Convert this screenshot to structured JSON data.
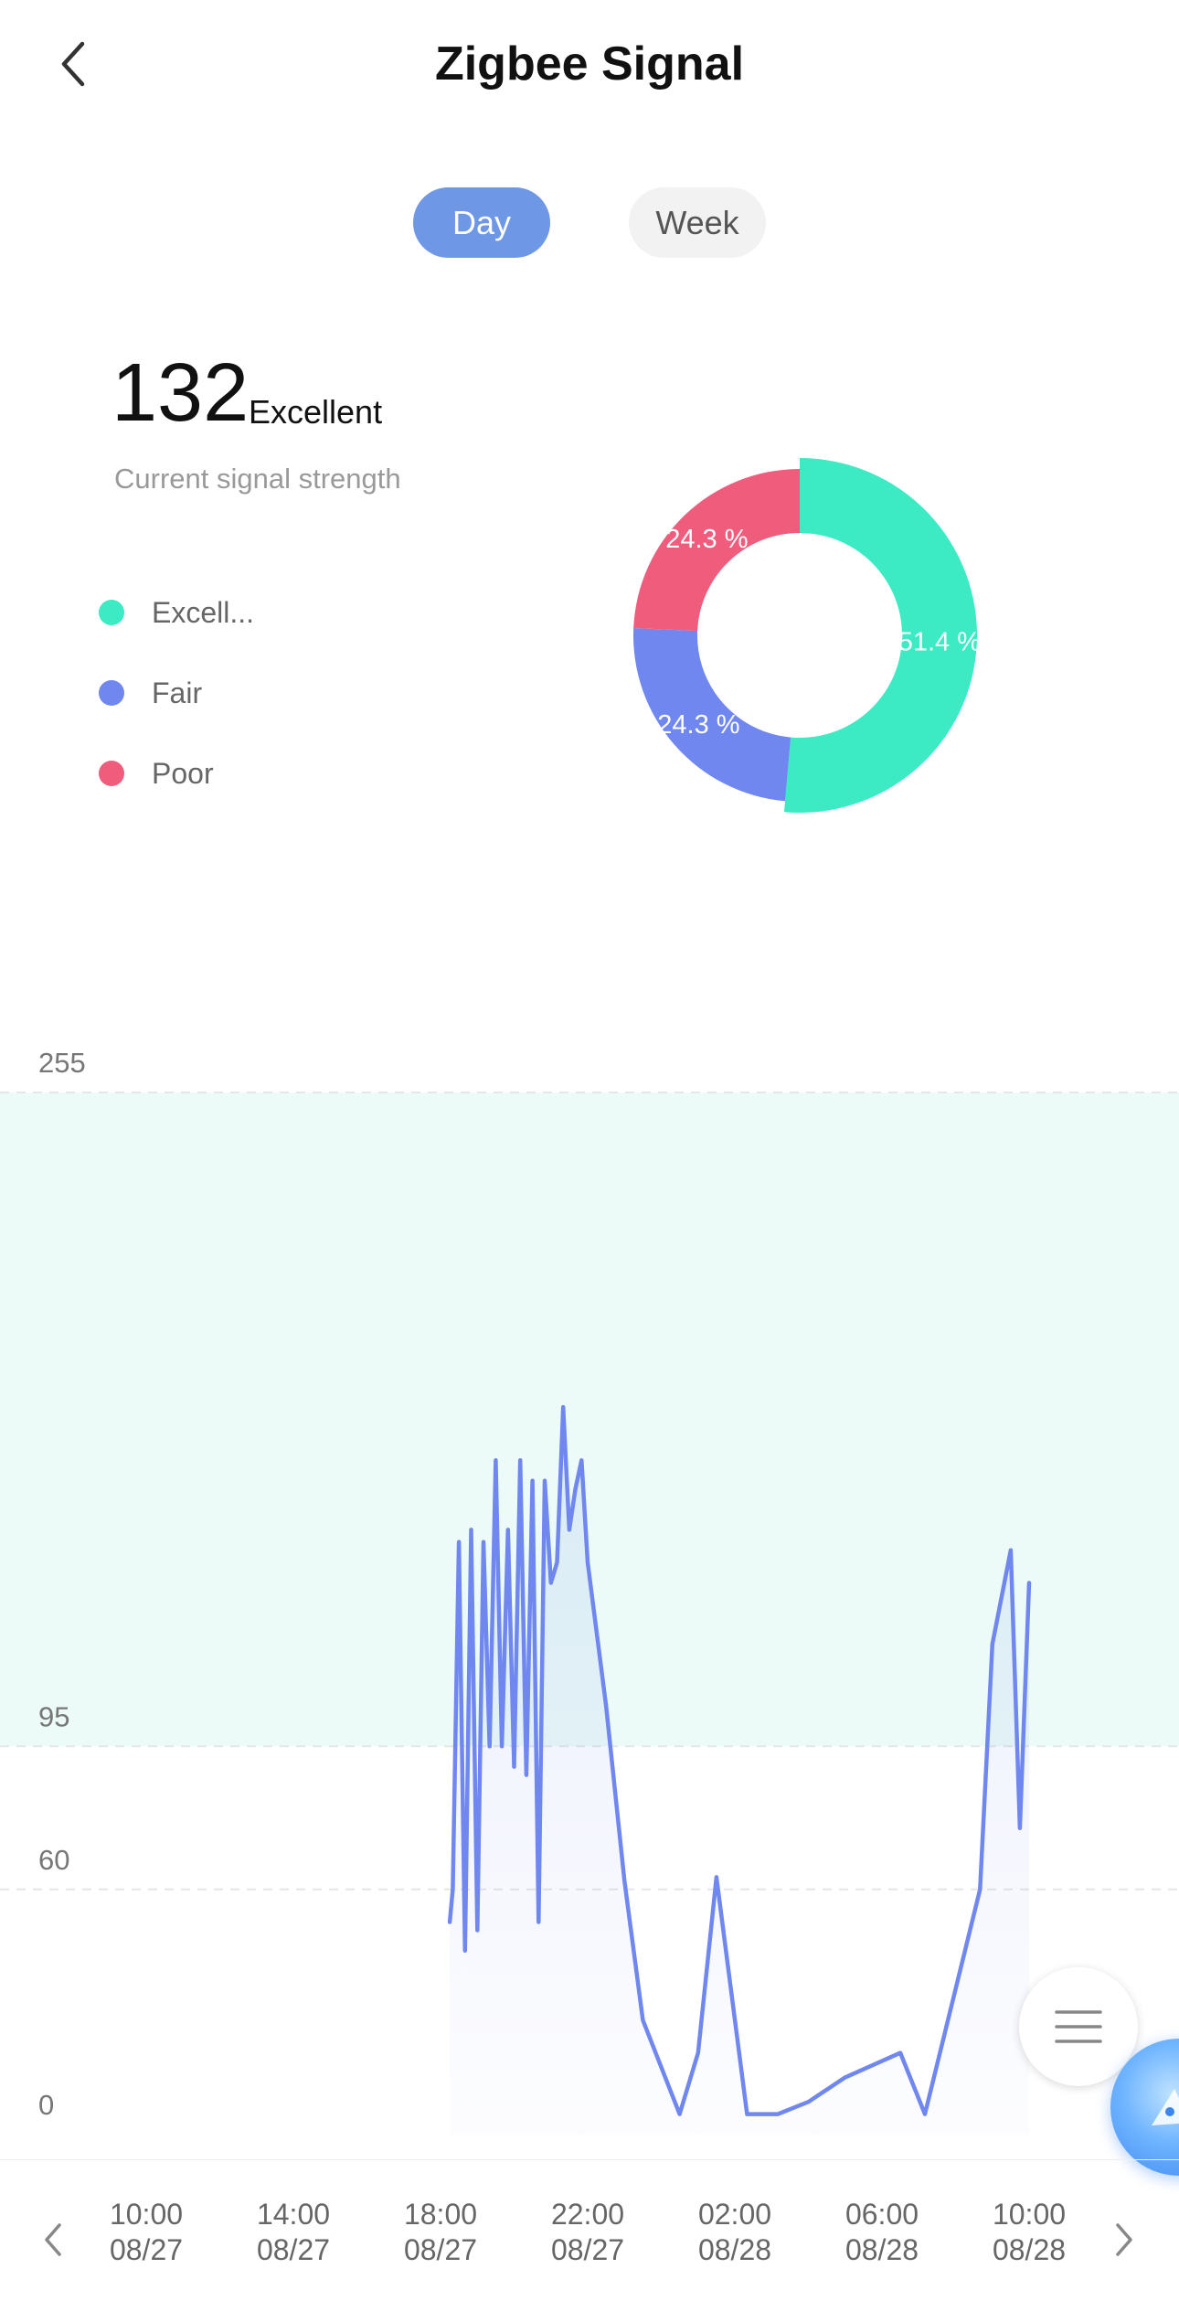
{
  "header": {
    "title": "Zigbee Signal"
  },
  "tabs": [
    {
      "label": "Day",
      "active": true
    },
    {
      "label": "Week",
      "active": false
    }
  ],
  "current": {
    "value": "132",
    "level": "Excellent",
    "caption": "Current signal strength"
  },
  "legend": [
    {
      "label": "Excell...",
      "color": "#3CEAC4"
    },
    {
      "label": "Fair",
      "color": "#6F87EF"
    },
    {
      "label": "Poor",
      "color": "#F05C7C"
    }
  ],
  "donut": {
    "slices": [
      {
        "name": "Excellent",
        "percent": 51.4,
        "label": "51.4 %",
        "color": "#3CEAC4"
      },
      {
        "name": "Fair",
        "percent": 24.3,
        "label": "24.3 %",
        "color": "#6F87EF"
      },
      {
        "name": "Poor",
        "percent": 24.3,
        "label": "24.3 %",
        "color": "#F05C7C"
      }
    ]
  },
  "chart_data": {
    "type": "line",
    "y_ticks": [
      "255",
      "95",
      "60",
      "0"
    ],
    "ylim": [
      0,
      255
    ],
    "x_tick_labels": [
      {
        "time": "10:00",
        "date": "08/27"
      },
      {
        "time": "14:00",
        "date": "08/27"
      },
      {
        "time": "18:00",
        "date": "08/27"
      },
      {
        "time": "22:00",
        "date": "08/27"
      },
      {
        "time": "02:00",
        "date": "08/28"
      },
      {
        "time": "06:00",
        "date": "08/28"
      },
      {
        "time": "10:00",
        "date": "08/28"
      }
    ],
    "excellent_band": [
      95,
      255
    ],
    "line_color": "#6F87EF",
    "band_color": "#ECFBF7",
    "series": [
      {
        "x": [
          "08/27 18:15",
          "08/27 18:20",
          "08/27 18:30",
          "08/27 18:40",
          "08/27 18:50",
          "08/27 19:00",
          "08/27 19:10",
          "08/27 19:20",
          "08/27 19:30",
          "08/27 19:40",
          "08/27 19:50",
          "08/27 20:00",
          "08/27 20:10",
          "08/27 20:20",
          "08/27 20:30",
          "08/27 20:40",
          "08/27 20:50",
          "08/27 21:00",
          "08/27 21:10",
          "08/27 21:20",
          "08/27 21:30",
          "08/27 21:40",
          "08/27 21:50",
          "08/27 22:00",
          "08/27 22:30",
          "08/27 23:00",
          "08/27 23:30",
          "08/28 00:30",
          "08/28 01:00",
          "08/28 01:30",
          "08/28 02:20",
          "08/28 03:10",
          "08/28 04:00",
          "08/28 05:00",
          "08/28 06:30",
          "08/28 07:10",
          "08/28 08:40",
          "08/28 09:00",
          "08/28 09:30",
          "08/28 09:45",
          "08/28 10:00"
        ],
        "values": [
          52,
          60,
          145,
          45,
          148,
          50,
          145,
          95,
          165,
          95,
          148,
          90,
          165,
          88,
          160,
          52,
          160,
          135,
          140,
          178,
          148,
          158,
          165,
          140,
          105,
          62,
          28,
          5,
          20,
          63,
          5,
          5,
          8,
          14,
          20,
          5,
          60,
          120,
          143,
          75,
          135
        ]
      }
    ]
  }
}
